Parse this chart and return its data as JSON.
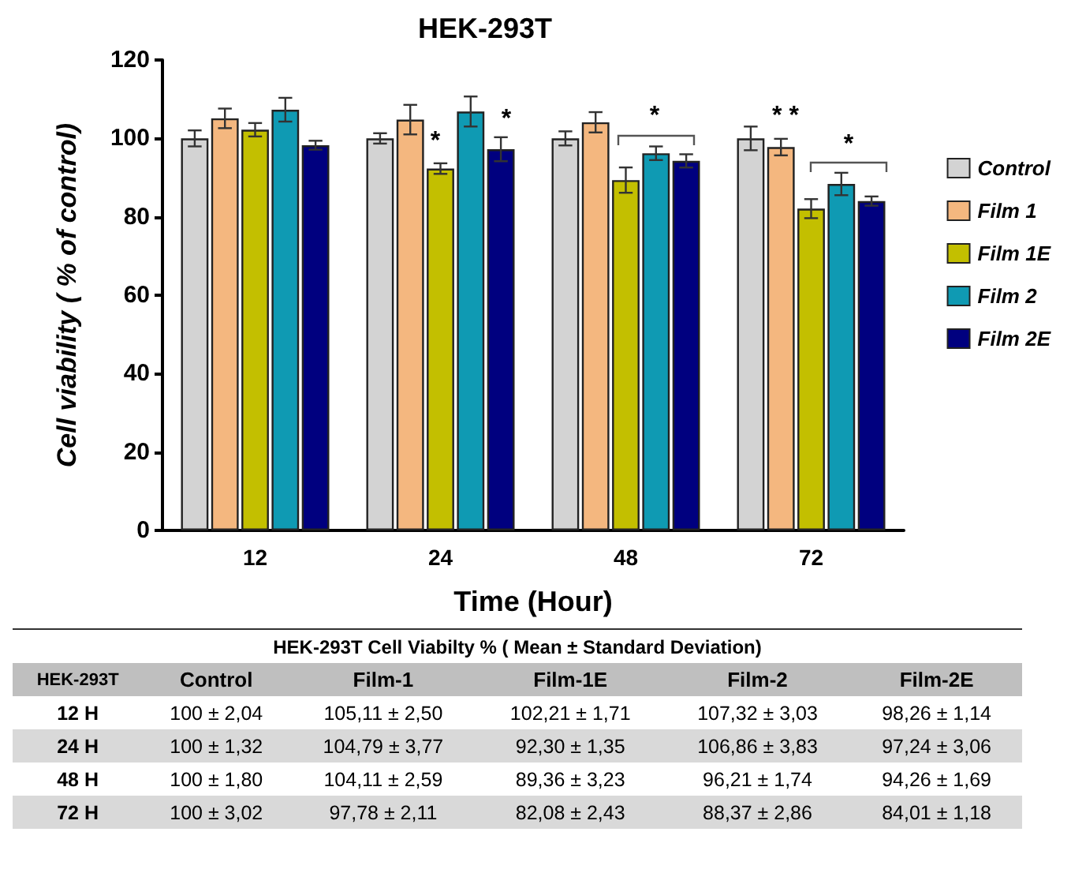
{
  "chart_data": {
    "type": "bar",
    "title": "HEK-293T",
    "xlabel": "Time (Hour)",
    "ylabel": "Cell viability ( % of control)",
    "categories": [
      "12",
      "24",
      "48",
      "72"
    ],
    "series": [
      {
        "name": "Control",
        "color": "#d3d3d3",
        "values": [
          100,
          100,
          100,
          100
        ],
        "errors": [
          2.04,
          1.32,
          1.8,
          3.02
        ]
      },
      {
        "name": "Film 1",
        "color": "#f4b77f",
        "values": [
          105.11,
          104.79,
          104.11,
          97.78
        ],
        "errors": [
          2.5,
          3.77,
          2.59,
          2.11
        ]
      },
      {
        "name": "Film 1E",
        "color": "#c3bf00",
        "values": [
          102.21,
          92.3,
          89.36,
          82.08
        ],
        "errors": [
          1.71,
          1.35,
          3.23,
          2.43
        ]
      },
      {
        "name": "Film 2",
        "color": "#0f9ab3",
        "values": [
          107.32,
          106.86,
          96.21,
          88.37
        ],
        "errors": [
          3.03,
          3.83,
          1.74,
          2.86
        ]
      },
      {
        "name": "Film 2E",
        "color": "#00007f",
        "values": [
          98.26,
          97.24,
          94.26,
          84.01
        ],
        "errors": [
          1.14,
          3.06,
          1.69,
          1.18
        ]
      }
    ],
    "ylim": [
      0,
      120
    ],
    "yticks": [
      0,
      20,
      40,
      60,
      80,
      100,
      120
    ],
    "grid": false,
    "legend": "right",
    "annotations": [
      "*",
      "*",
      "*",
      "* *",
      "*",
      "HEK-293T Cell Viabilty % (  Mean ± Standard Deviation)",
      "HEK-293T",
      "Control",
      "Film-1",
      "Film-1E",
      "Film-2",
      "Film-2E",
      "12 H",
      "24 H",
      "48 H",
      "72 H",
      "100 ± 2,04",
      "105,11 ± 2,50",
      "102,21 ± 1,71",
      "107,32 ± 3,03",
      "98,26 ± 1,14",
      "100 ± 1,32",
      "104,79 ± 3,77",
      "92,30 ± 1,35",
      "106,86 ± 3,83",
      "97,24 ± 3,06",
      "100 ± 1,80",
      "104,11 ± 2,59",
      "89,36 ± 3,23",
      "96,21 ± 1,74",
      "94,26 ± 1,69",
      "100 ± 3,02",
      "97,78 ± 2,11",
      "82,08 ± 2,43",
      "88,37 ± 2,86",
      "84,01 ± 1,18"
    ]
  }
}
